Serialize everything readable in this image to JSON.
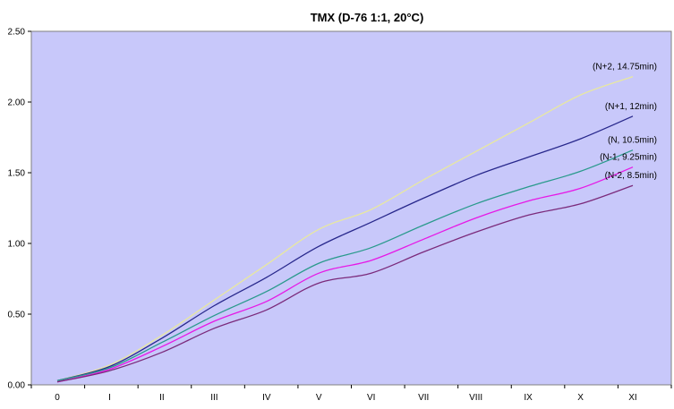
{
  "chart_data": {
    "type": "line",
    "title": "TMX (D-76 1:1, 20°C)",
    "xlabel": "",
    "ylabel": "",
    "categories": [
      "0",
      "I",
      "II",
      "III",
      "IV",
      "V",
      "VI",
      "VII",
      "VIII",
      "IX",
      "X",
      "XI"
    ],
    "ylim": [
      0,
      2.5
    ],
    "yticks": [
      "0.00",
      "0.50",
      "1.00",
      "1.50",
      "2.00",
      "2.50"
    ],
    "grid": false,
    "legend": "none",
    "plot_background": "#c8c8fa",
    "series": [
      {
        "name": "(N+2, 14.75min)",
        "color": "#e8e8a0",
        "values": [
          0.03,
          0.14,
          0.35,
          0.6,
          0.85,
          1.1,
          1.24,
          1.45,
          1.65,
          1.85,
          2.05,
          2.18
        ]
      },
      {
        "name": "(N+1, 12min)",
        "color": "#28288c",
        "values": [
          0.03,
          0.13,
          0.33,
          0.56,
          0.76,
          0.98,
          1.15,
          1.32,
          1.48,
          1.61,
          1.74,
          1.9
        ]
      },
      {
        "name": "(N, 10.5min)",
        "color": "#2a9a8c",
        "values": [
          0.03,
          0.12,
          0.3,
          0.49,
          0.66,
          0.86,
          0.97,
          1.13,
          1.28,
          1.4,
          1.51,
          1.66
        ]
      },
      {
        "name": "(N-1, 9.25min)",
        "color": "#e619e6",
        "values": [
          0.02,
          0.11,
          0.27,
          0.45,
          0.59,
          0.79,
          0.88,
          1.03,
          1.18,
          1.3,
          1.39,
          1.54
        ]
      },
      {
        "name": "(N-2, 8.5min)",
        "color": "#7b2a7b",
        "values": [
          0.02,
          0.1,
          0.23,
          0.4,
          0.53,
          0.72,
          0.79,
          0.94,
          1.08,
          1.2,
          1.28,
          1.41
        ]
      }
    ]
  }
}
